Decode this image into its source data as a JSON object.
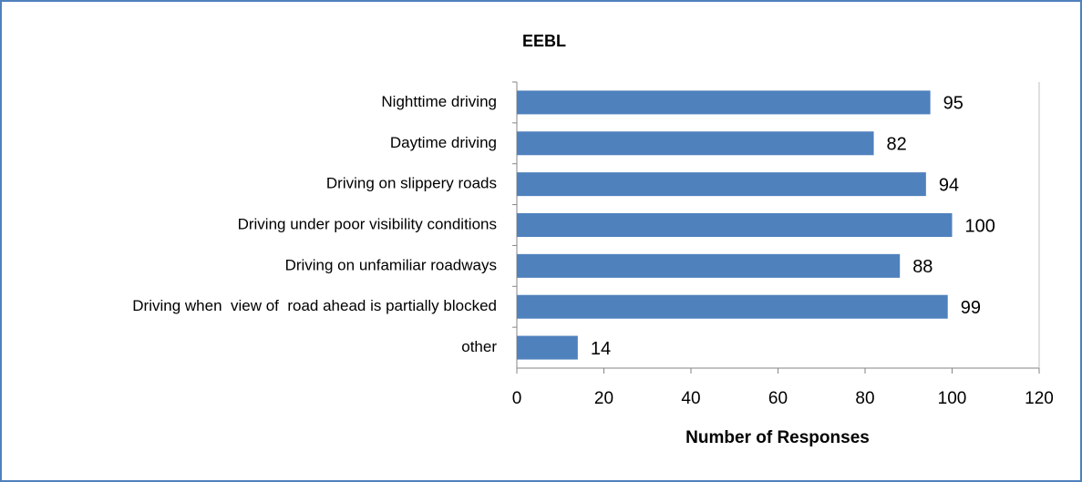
{
  "chart_data": {
    "type": "barh",
    "title": "EEBL",
    "categories": [
      "Nighttime driving",
      "Daytime driving",
      "Driving on slippery roads",
      "Driving under poor visibility conditions",
      "Driving on unfamiliar roadways",
      "Driving when  view of  road ahead is partially blocked",
      "other"
    ],
    "values": [
      95,
      82,
      94,
      100,
      88,
      99,
      14
    ],
    "color": "#4f81bd",
    "xlabel": "Number of Responses",
    "xlim": [
      0,
      120
    ],
    "xticks": [
      0,
      20,
      40,
      60,
      80,
      100,
      120
    ],
    "grid": false
  }
}
